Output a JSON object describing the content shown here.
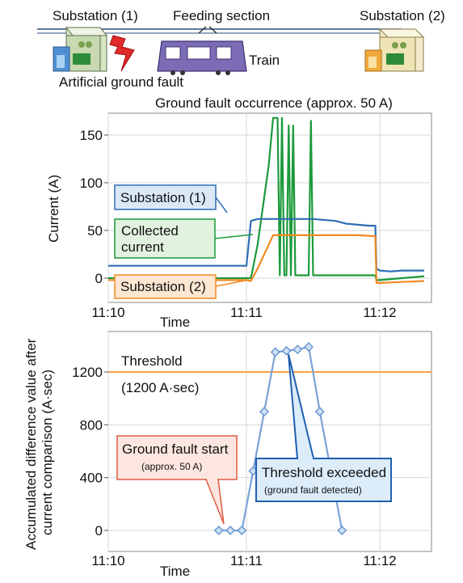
{
  "header": {
    "substation1": "Substation (1)",
    "feeding_section": "Feeding section",
    "substation2": "Substation (2)",
    "train": "Train",
    "artificial_fault": "Artificial ground fault",
    "fault_occurrence": "Ground fault occurrence (approx. 50 A)"
  },
  "colors": {
    "substation1": "#2f6db5",
    "collected": "#1b9a3a",
    "substation2": "#f28a22",
    "threshold_line": "#f5a04a",
    "accum_line": "#7aa3d6",
    "callout_red_bg": "#fde6df",
    "callout_red_border": "#e05a44",
    "callout_blue_bg": "#dcecf9",
    "callout_blue_border": "#1f5fb0"
  },
  "top_chart": {
    "ylabel": "Current (A)",
    "xlabel": "Time",
    "y_ticks": [
      "150",
      "100",
      "50",
      "0"
    ],
    "x_ticks": [
      "11:10",
      "11:11",
      "11:12"
    ],
    "legend_substation1": "Substation (1)",
    "legend_collected_1": "Collected",
    "legend_collected_2": "current",
    "legend_substation2": "Substation (2)"
  },
  "bottom_chart": {
    "ylabel_1": "Accumulated difference value after",
    "ylabel_2": "current comparison (A·sec)",
    "xlabel": "Time",
    "y_ticks": [
      "1200",
      "800",
      "400",
      "0"
    ],
    "x_ticks": [
      "11:10",
      "11:11",
      "11:12"
    ],
    "threshold_label": "Threshold",
    "threshold_value": "(1200 A·sec)",
    "callout_start_1": "Ground fault start",
    "callout_start_2": "(approx. 50 A)",
    "callout_exceed_1": "Threshold exceeded",
    "callout_exceed_2": "(ground fault detected)"
  },
  "chart_data": [
    {
      "type": "line",
      "ylabel": "Current (A)",
      "xlabel": "Time",
      "x_ticks": [
        "11:10",
        "11:11",
        "11:12"
      ],
      "ylim": [
        -10,
        175
      ],
      "grid": true,
      "series": [
        {
          "name": "Substation (1)",
          "x_sec": [
            0,
            40,
            52,
            60,
            62,
            65,
            66,
            70,
            73,
            75,
            78,
            80,
            82,
            85,
            88,
            90,
            100,
            105,
            110,
            115,
            118,
            118.5,
            120,
            125,
            130,
            135,
            140
          ],
          "values": [
            13,
            13,
            13,
            13,
            60,
            62,
            62,
            62,
            62,
            62,
            62,
            62,
            62,
            62,
            62,
            62,
            60,
            57,
            56,
            55,
            55,
            10,
            8,
            7,
            8,
            8,
            8
          ]
        },
        {
          "name": "Collected current",
          "x_sec": [
            0,
            40,
            52,
            60,
            62,
            65,
            70,
            72,
            73,
            74,
            75,
            76,
            77,
            78,
            79,
            80,
            81,
            82,
            84,
            85,
            86,
            88,
            89,
            90,
            100,
            110,
            118,
            118.5,
            120,
            130,
            140
          ],
          "values": [
            0,
            0,
            0,
            0,
            0,
            35,
            118,
            168,
            168,
            168,
            3,
            168,
            3,
            3,
            160,
            3,
            160,
            3,
            3,
            3,
            3,
            3,
            165,
            3,
            3,
            3,
            3,
            -2,
            -2,
            0,
            2
          ]
        },
        {
          "name": "Substation (2)",
          "x_sec": [
            0,
            40,
            52,
            60,
            62,
            65,
            70,
            72,
            75,
            77,
            80,
            85,
            90,
            100,
            110,
            118,
            118.5,
            120,
            130,
            140
          ],
          "values": [
            -2,
            -2,
            -2,
            -2,
            -3,
            10,
            35,
            45,
            45,
            45,
            45,
            45,
            45,
            45,
            45,
            44,
            -5,
            -5,
            -4,
            -3
          ]
        }
      ]
    },
    {
      "type": "line",
      "ylabel": "Accumulated difference value after current comparison (A·sec)",
      "xlabel": "Time",
      "x_ticks": [
        "11:10",
        "11:11",
        "11:12"
      ],
      "ylim": [
        -100,
        1450
      ],
      "threshold": 1200,
      "grid": true,
      "series": [
        {
          "name": "Accumulated difference",
          "x_sec": [
            48,
            53,
            58,
            63,
            68,
            73,
            78,
            83,
            88,
            93,
            98,
            103
          ],
          "values": [
            0,
            0,
            0,
            450,
            900,
            1350,
            1360,
            1370,
            1390,
            900,
            450,
            0
          ]
        }
      ]
    }
  ]
}
